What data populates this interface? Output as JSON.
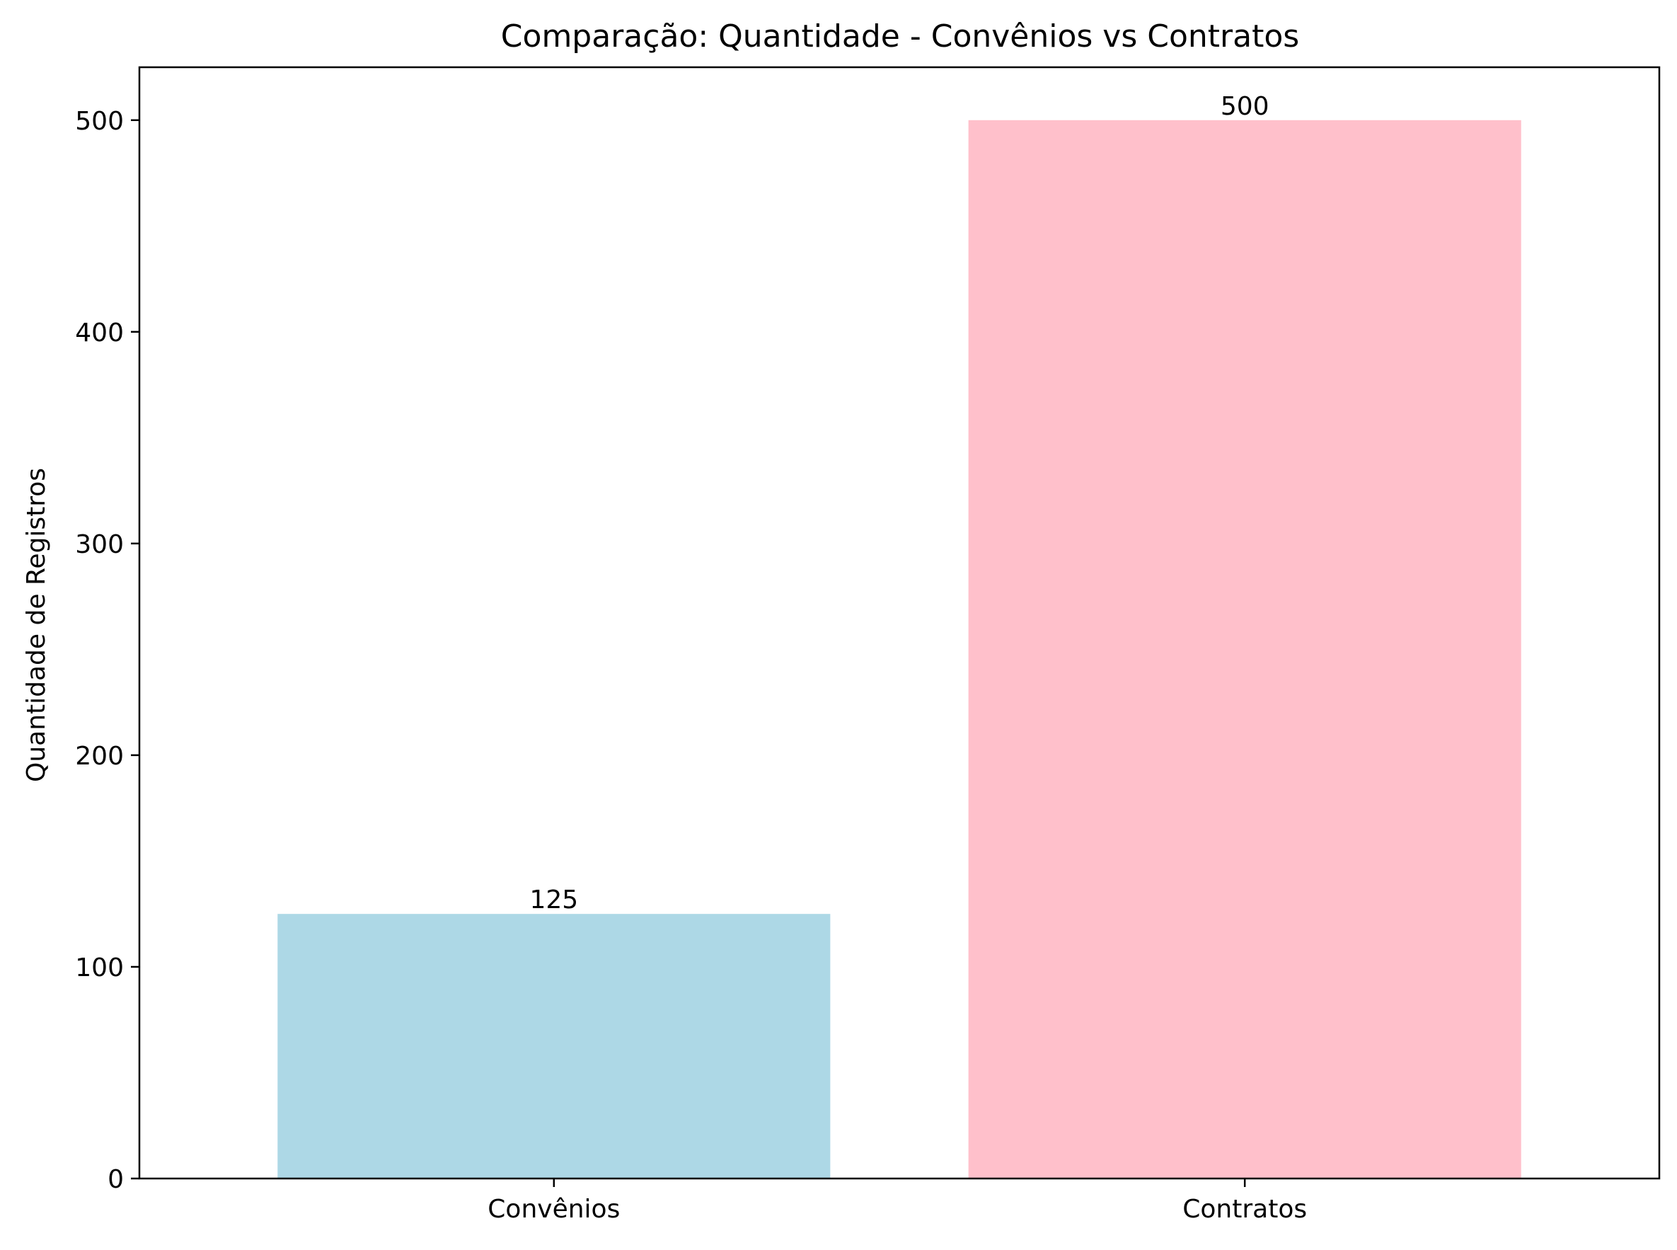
{
  "chart_data": {
    "type": "bar",
    "title": "Comparação: Quantidade - Convênios vs Contratos",
    "xlabel": "",
    "ylabel": "Quantidade de Registros",
    "categories": [
      "Convênios",
      "Contratos"
    ],
    "values": [
      125,
      500
    ],
    "value_labels": [
      "125",
      "500"
    ],
    "colors": [
      "#add8e6",
      "#ffc0cb"
    ],
    "ylim": [
      0,
      525
    ],
    "yticks": [
      0,
      100,
      200,
      300,
      400,
      500
    ],
    "ytick_labels": [
      "0",
      "100",
      "200",
      "300",
      "400",
      "500"
    ],
    "grid": false,
    "legend": "none"
  }
}
